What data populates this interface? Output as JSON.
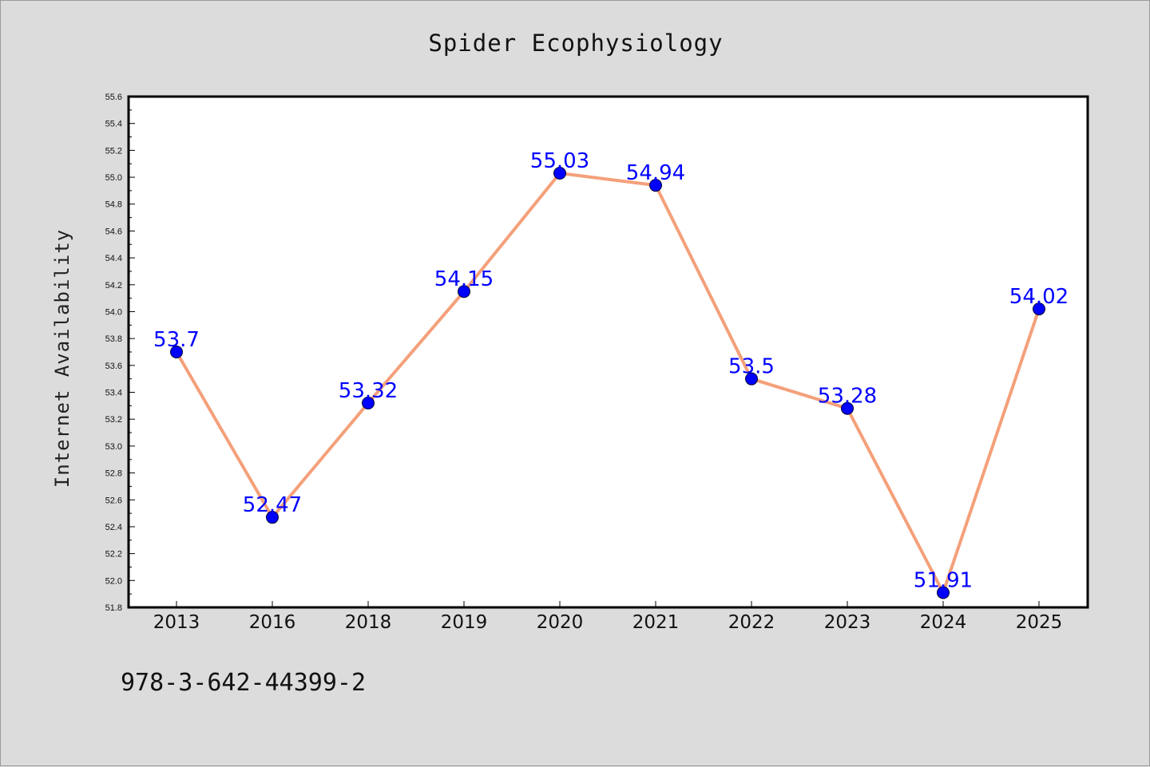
{
  "chart_data": {
    "type": "line",
    "title": "Spider Ecophysiology",
    "xlabel": "",
    "ylabel": "Internet Availability",
    "categories": [
      "2013",
      "2016",
      "2018",
      "2019",
      "2020",
      "2021",
      "2022",
      "2023",
      "2024",
      "2025"
    ],
    "series": [
      {
        "values": [
          53.7,
          52.47,
          53.32,
          54.15,
          55.03,
          54.94,
          53.5,
          53.28,
          51.91,
          54.02
        ],
        "labels": [
          "53.7",
          "52.47",
          "53.32",
          "54.15",
          "55.03",
          "54.94",
          "53.5",
          "53.28",
          "51.91",
          "54.02"
        ],
        "line_color": "#f4a07a",
        "marker_color": "#0000ff"
      }
    ],
    "ylim": [
      51.8,
      55.6
    ],
    "yticks": [
      "51.8",
      "52.0",
      "52.2",
      "52.4",
      "52.6",
      "52.8",
      "53.0",
      "53.2",
      "53.4",
      "53.6",
      "53.8",
      "54.0",
      "54.2",
      "54.4",
      "54.6",
      "54.8",
      "55.0",
      "55.2",
      "55.4",
      "55.6"
    ],
    "grid": false,
    "legend": "none"
  },
  "footer_text": "978-3-642-44399-2",
  "colors": {
    "background": "#dcdcdc",
    "plot_background": "#ffffff",
    "label_text": "#0000ff"
  }
}
